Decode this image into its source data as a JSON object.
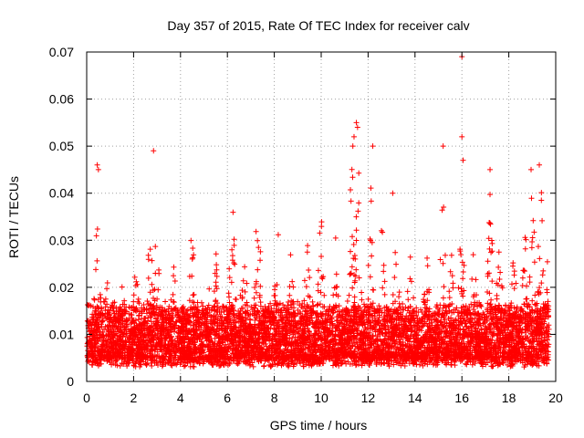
{
  "chart_data": {
    "type": "scatter",
    "title": "Day 357 of 2015, Rate Of TEC Index for receiver calv",
    "xlabel": "GPS time / hours",
    "ylabel": "ROTI / TECUs",
    "xlim": [
      0,
      20
    ],
    "ylim": [
      0,
      0.07
    ],
    "xticks": [
      "0",
      "2",
      "4",
      "6",
      "8",
      "10",
      "12",
      "14",
      "16",
      "18",
      "20"
    ],
    "yticks": [
      "0",
      "0.01",
      "0.02",
      "0.03",
      "0.04",
      "0.05",
      "0.06",
      "0.07"
    ],
    "grid": true,
    "marker": "+",
    "series": [
      {
        "name": "ROTI",
        "color": "#ff0000",
        "summary": {
          "baseline_range": [
            0.003,
            0.015
          ],
          "typical_peak_range": [
            0.02,
            0.045
          ],
          "max_point": {
            "x": 16.0,
            "y": 0.069
          }
        },
        "notable_points": [
          {
            "x": 0.45,
            "y": 0.046
          },
          {
            "x": 0.5,
            "y": 0.045
          },
          {
            "x": 2.85,
            "y": 0.049
          },
          {
            "x": 11.5,
            "y": 0.055
          },
          {
            "x": 11.55,
            "y": 0.054
          },
          {
            "x": 11.4,
            "y": 0.052
          },
          {
            "x": 11.35,
            "y": 0.05
          },
          {
            "x": 12.2,
            "y": 0.05
          },
          {
            "x": 13.05,
            "y": 0.04
          },
          {
            "x": 15.2,
            "y": 0.05
          },
          {
            "x": 16.0,
            "y": 0.069
          },
          {
            "x": 16.0,
            "y": 0.052
          },
          {
            "x": 16.05,
            "y": 0.047
          },
          {
            "x": 17.2,
            "y": 0.045
          },
          {
            "x": 18.95,
            "y": 0.045
          },
          {
            "x": 19.3,
            "y": 0.046
          }
        ]
      }
    ]
  }
}
